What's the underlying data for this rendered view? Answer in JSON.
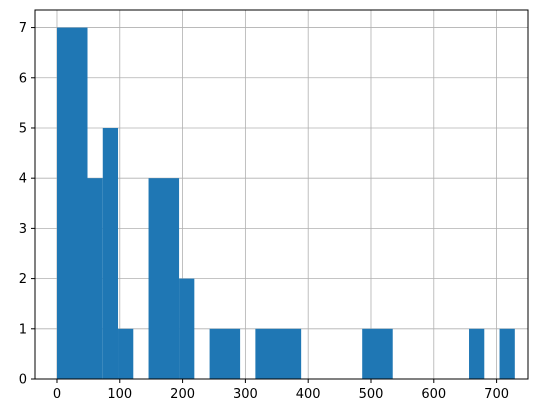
{
  "chart_data": {
    "type": "bar",
    "bins": [
      {
        "x0": 0,
        "x1": 48.6,
        "count": 7
      },
      {
        "x0": 48.6,
        "x1": 72.9,
        "count": 4
      },
      {
        "x0": 72.9,
        "x1": 97.2,
        "count": 5
      },
      {
        "x0": 97.2,
        "x1": 121.5,
        "count": 1
      },
      {
        "x0": 121.5,
        "x1": 145.8,
        "count": 0
      },
      {
        "x0": 145.8,
        "x1": 194.4,
        "count": 4
      },
      {
        "x0": 194.4,
        "x1": 218.7,
        "count": 2
      },
      {
        "x0": 218.7,
        "x1": 243,
        "count": 0
      },
      {
        "x0": 243,
        "x1": 291.6,
        "count": 1
      },
      {
        "x0": 291.6,
        "x1": 315.9,
        "count": 0
      },
      {
        "x0": 315.9,
        "x1": 388.8,
        "count": 1
      },
      {
        "x0": 388.8,
        "x1": 486,
        "count": 0
      },
      {
        "x0": 486,
        "x1": 534.6,
        "count": 1
      },
      {
        "x0": 534.6,
        "x1": 656.1,
        "count": 0
      },
      {
        "x0": 656.1,
        "x1": 680.4,
        "count": 1
      },
      {
        "x0": 680.4,
        "x1": 704.7,
        "count": 0
      },
      {
        "x0": 704.7,
        "x1": 729,
        "count": 1
      }
    ],
    "xlim": [
      -35,
      750
    ],
    "ylim": [
      0,
      7.35
    ],
    "xticks": [
      0,
      100,
      200,
      300,
      400,
      500,
      600,
      700
    ],
    "yticks": [
      0,
      1,
      2,
      3,
      4,
      5,
      6,
      7
    ],
    "grid": true,
    "bar_color": "#1f77b4",
    "grid_color": "#b0b0b0",
    "title": "",
    "xlabel": "",
    "ylabel": ""
  }
}
